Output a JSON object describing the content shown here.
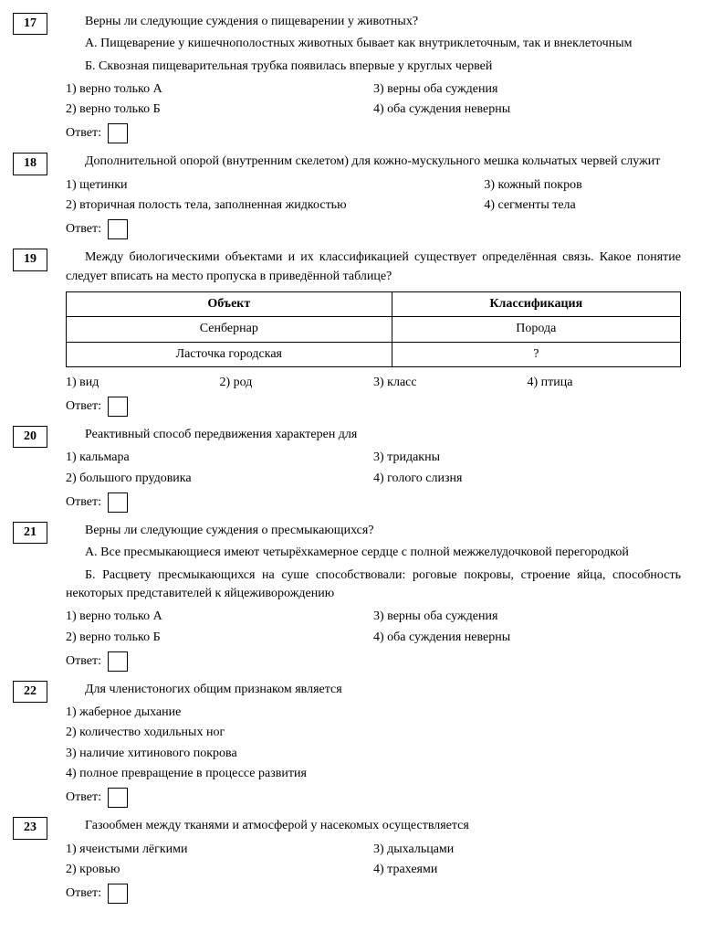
{
  "answer_label": "Ответ:",
  "q17": {
    "num": "17",
    "intro": "Верны ли следующие суждения о пищеварении у животных?",
    "a": "А. Пищеварение у кишечнополостных животных бывает как внутриклеточ­ным, так и внеклеточным",
    "b": "Б. Сквозная пищеварительная трубка появилась впервые у круглых червей",
    "o1": "1) верно только А",
    "o2": "2) верно только Б",
    "o3": "3) верны оба суждения",
    "o4": "4) оба суждения неверны"
  },
  "q18": {
    "num": "18",
    "text": "Дополнительной опорой (внутренним скелетом) для кожно-мускульного меш­ка кольчатых червей служит",
    "o1": "1) щетинки",
    "o2": "2) вторичная полость тела, заполненная жидкостью",
    "o3": "3) кожный покров",
    "o4": "4) сегменты тела"
  },
  "q19": {
    "num": "19",
    "text": "Между биологическими объектами и их классификацией существует определён­ная связь. Какое понятие следует вписать на место пропуска в приведённой таблице?",
    "th1": "Объект",
    "th2": "Классификация",
    "r1c1": "Сенбернар",
    "r1c2": "Порода",
    "r2c1": "Ласточка городская",
    "r2c2": "?",
    "o1": "1) вид",
    "o2": "2) род",
    "o3": "3) класс",
    "o4": "4) птица"
  },
  "q20": {
    "num": "20",
    "text": "Реактивный способ передвижения характерен для",
    "o1": "1) кальмара",
    "o2": "2) большого прудовика",
    "o3": "3) тридакны",
    "o4": "4) голого слизня"
  },
  "q21": {
    "num": "21",
    "intro": "Верны ли следующие суждения о пресмыкающихся?",
    "a": "А. Все пресмыкающиеся имеют четырёхкамерное сердце с полной межжелу­дочковой перегородкой",
    "b": "Б. Расцвету пресмыкающихся на суше способствовали: роговые покровы, строение яйца, способность некоторых представителей к яйцеживорождению",
    "o1": "1) верно только А",
    "o2": "2) верно только Б",
    "o3": "3) верны оба суждения",
    "o4": "4) оба суждения неверны"
  },
  "q22": {
    "num": "22",
    "text": "Для членистоногих общим признаком является",
    "o1": "1) жаберное дыхание",
    "o2": "2) количество ходильных ног",
    "o3": "3) наличие хитинового покрова",
    "o4": "4) полное превращение в процессе развития"
  },
  "q23": {
    "num": "23",
    "text": "Газообмен между тканями и атмосферой у насекомых осуществляется",
    "o1": "1) ячеистыми лёгкими",
    "o2": "2) кровью",
    "o3": "3) дыхальцами",
    "o4": "4) трахеями"
  }
}
